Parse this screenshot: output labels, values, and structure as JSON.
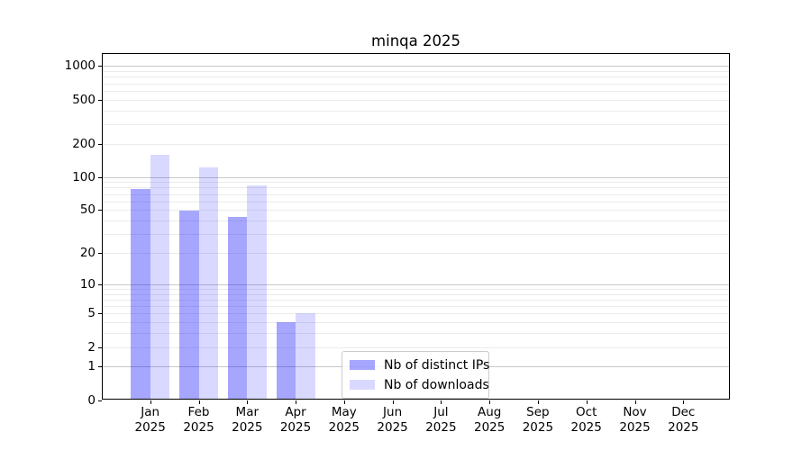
{
  "page": {
    "background_color": "#ffffff"
  },
  "chart_data": {
    "type": "bar",
    "title": "minqa 2025",
    "categories": [
      "Jan",
      "Feb",
      "Mar",
      "Apr",
      "May",
      "Jun",
      "Jul",
      "Aug",
      "Sep",
      "Oct",
      "Nov",
      "Dec"
    ],
    "year": "2025",
    "series": [
      {
        "name": "Nb of distinct IPs",
        "color": "rgba(0,0,255,0.35)",
        "color_on_white_hex": "#A6A6FF",
        "values": [
          78,
          49,
          43,
          4,
          0,
          0,
          0,
          0,
          0,
          0,
          0,
          0
        ]
      },
      {
        "name": "Nb of downloads",
        "color": "rgba(0,0,255,0.15)",
        "color_on_white_hex": "#D9D9FF",
        "values": [
          160,
          123,
          84,
          5,
          0,
          0,
          0,
          0,
          0,
          0,
          0,
          0
        ]
      }
    ],
    "yticks": [
      0,
      1,
      2,
      5,
      10,
      20,
      50,
      100,
      200,
      500,
      1000
    ],
    "ylim": [
      0,
      1300
    ],
    "scale": "log1p",
    "xlabel": "",
    "ylabel": "",
    "grid": "horizontal",
    "major_grid_values": [
      1,
      10,
      100,
      1000
    ],
    "minor_grid_values": [
      2,
      3,
      4,
      5,
      6,
      7,
      8,
      9,
      20,
      30,
      40,
      50,
      60,
      70,
      80,
      90,
      200,
      300,
      400,
      500,
      600,
      700,
      800,
      900
    ],
    "major_grid_color": "#c8c8c8",
    "minor_grid_color": "#ebebeb",
    "legend_position": "lower-center"
  }
}
